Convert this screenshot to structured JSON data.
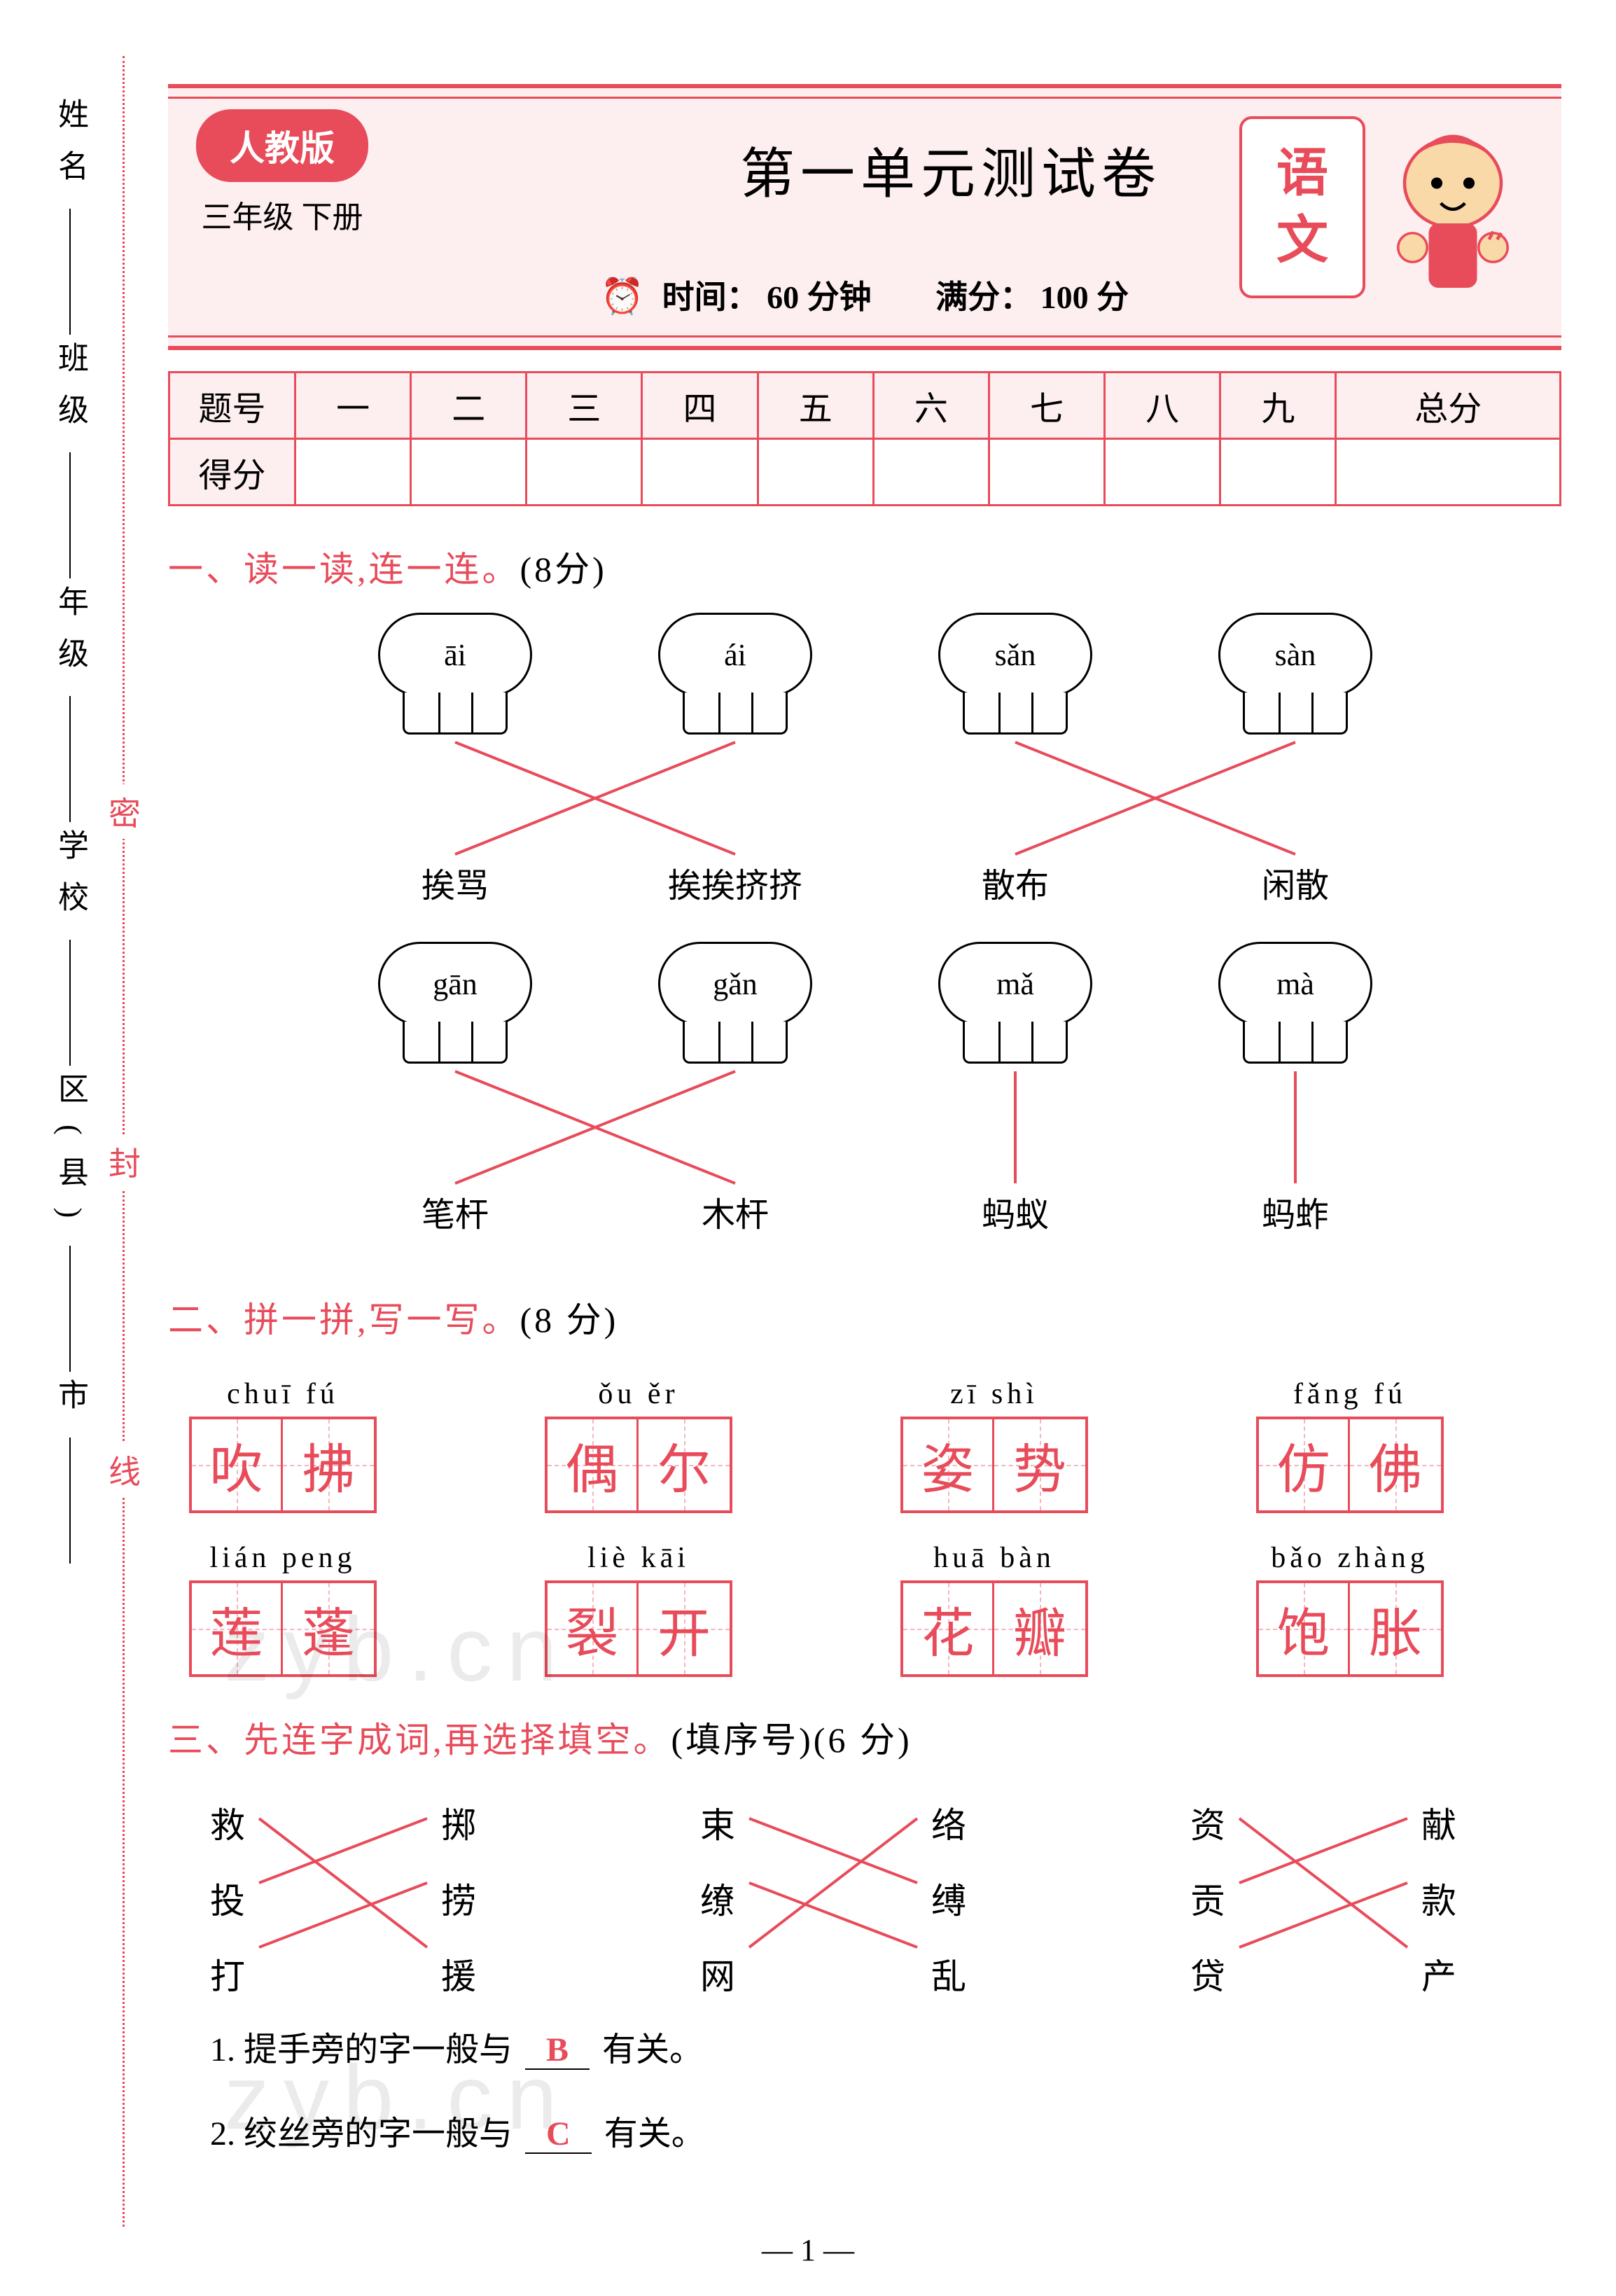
{
  "colors": {
    "accent": "#e84b5a",
    "accent_light": "#fdeef0",
    "text": "#000000",
    "answer": "#e84b5a",
    "dash": "#f4b6bd",
    "background": "#ffffff"
  },
  "sidebar": {
    "labels": [
      "姓名",
      "班级",
      "年级",
      "学校",
      "区(县)",
      "市"
    ],
    "separator": "——"
  },
  "seal": {
    "chars": [
      "密",
      "封",
      "线"
    ]
  },
  "header": {
    "edition": "人教版",
    "grade": "三年级 下册",
    "title": "第一单元测试卷",
    "time_label": "时间：",
    "time_value": "60 分钟",
    "full_label": "满分：",
    "full_value": "100 分",
    "subject1": "语",
    "subject2": "文"
  },
  "score_table": {
    "row_header": "题号",
    "score_header": "得分",
    "columns": [
      "一",
      "二",
      "三",
      "四",
      "五",
      "六",
      "七",
      "八",
      "九",
      "总分"
    ]
  },
  "q1": {
    "title": "一、读一读,连一连。",
    "points": "(8分)",
    "group1": {
      "pinyins": [
        "āi",
        "ái",
        "sǎn",
        "sàn"
      ],
      "words": [
        "挨骂",
        "挨挨挤挤",
        "散布",
        "闲散"
      ],
      "matches": [
        [
          0,
          1
        ],
        [
          1,
          0
        ],
        [
          2,
          3
        ],
        [
          3,
          2
        ]
      ],
      "line_color": "#e84b5a"
    },
    "group2": {
      "pinyins": [
        "gān",
        "gǎn",
        "mǎ",
        "mà"
      ],
      "words": [
        "笔杆",
        "木杆",
        "蚂蚁",
        "蚂蚱"
      ],
      "matches": [
        [
          0,
          1
        ],
        [
          1,
          0
        ],
        [
          2,
          2
        ],
        [
          3,
          3
        ]
      ],
      "line_color": "#e84b5a"
    }
  },
  "q2": {
    "title": "二、拼一拼,写一写。",
    "points": "(8 分)",
    "row1": [
      {
        "pinyin": "chuī fú",
        "chars": [
          "吹",
          "拂"
        ]
      },
      {
        "pinyin": "ǒu ěr",
        "chars": [
          "偶",
          "尔"
        ]
      },
      {
        "pinyin": "zī shì",
        "chars": [
          "姿",
          "势"
        ]
      },
      {
        "pinyin": "fǎng fú",
        "chars": [
          "仿",
          "佛"
        ]
      }
    ],
    "row2": [
      {
        "pinyin": "lián peng",
        "chars": [
          "莲",
          "蓬"
        ]
      },
      {
        "pinyin": "liè kāi",
        "chars": [
          "裂",
          "开"
        ]
      },
      {
        "pinyin": "huā bàn",
        "chars": [
          "花",
          "瓣"
        ]
      },
      {
        "pinyin": "bǎo zhàng",
        "chars": [
          "饱",
          "胀"
        ]
      }
    ]
  },
  "q3": {
    "title": "三、先连字成词,再选择填空。",
    "points": "(填序号)(6 分)",
    "triplets": [
      {
        "left": [
          "救",
          "投",
          "打"
        ],
        "right": [
          "掷",
          "捞",
          "援"
        ],
        "matches": [
          [
            0,
            2
          ],
          [
            1,
            0
          ],
          [
            2,
            1
          ]
        ],
        "line_color": "#e84b5a"
      },
      {
        "left": [
          "束",
          "缭",
          "网"
        ],
        "right": [
          "络",
          "缚",
          "乱"
        ],
        "matches": [
          [
            0,
            1
          ],
          [
            1,
            2
          ],
          [
            2,
            0
          ]
        ],
        "line_color": "#e84b5a"
      },
      {
        "left": [
          "资",
          "贡",
          "贷"
        ],
        "right": [
          "献",
          "款",
          "产"
        ],
        "matches": [
          [
            0,
            2
          ],
          [
            1,
            0
          ],
          [
            2,
            1
          ]
        ],
        "line_color": "#e84b5a"
      }
    ],
    "sub1_prefix": "1. 提手旁的字一般与",
    "sub1_answer": "B",
    "sub1_suffix": "有关。",
    "sub2_prefix": "2. 绞丝旁的字一般与",
    "sub2_answer": "C",
    "sub2_suffix": "有关。"
  },
  "watermarks": [
    "zyb.cn",
    "zyb.cn"
  ],
  "page_number": "— 1 —"
}
